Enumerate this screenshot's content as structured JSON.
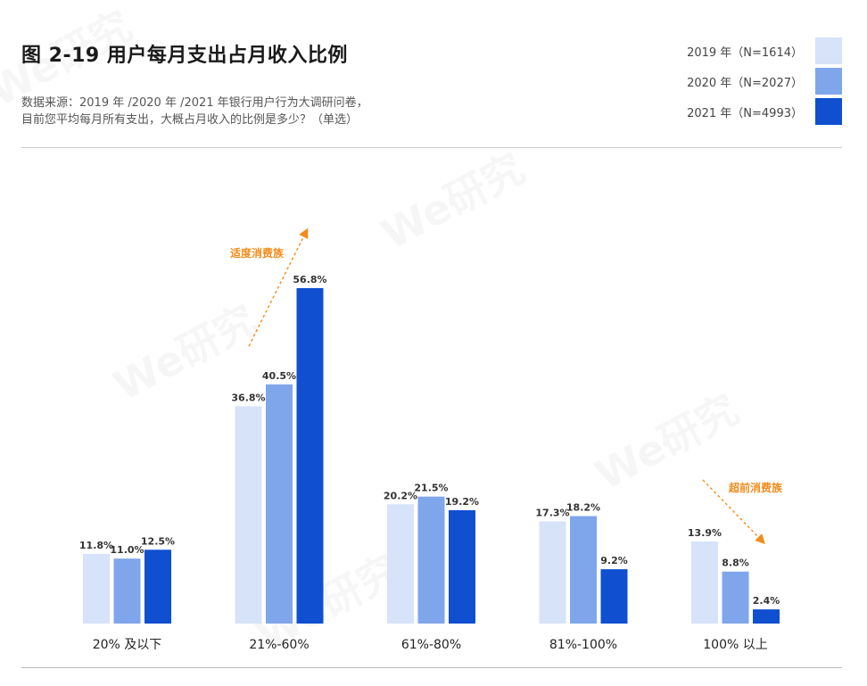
{
  "header": {
    "title": "图 2-19  用户每月支出占月收入比例",
    "source_line1": "数据来源：2019 年 /2020 年 /2021 年银行用户行为大调研问卷，",
    "source_line2": "目前您平均每月所有支出，大概占月收入的比例是多少？（单选）"
  },
  "legend": [
    {
      "label": "2019 年（N=1614）",
      "color": "#d6e3f8"
    },
    {
      "label": "2020 年（N=2027）",
      "color": "#7fa6ea"
    },
    {
      "label": "2021 年（N=4993）",
      "color": "#0f4fd0"
    }
  ],
  "watermark": "We研究",
  "annotations": [
    {
      "text": "适度消费族",
      "color": "#f28c1c"
    },
    {
      "text": "超前消费族",
      "color": "#f28c1c"
    }
  ],
  "chart_data": {
    "type": "bar",
    "categories": [
      "20% 及以下",
      "21%-60%",
      "61%-80%",
      "81%-100%",
      "100% 以上"
    ],
    "series": [
      {
        "name": "2019 年（N=1614）",
        "values": [
          11.8,
          36.8,
          20.2,
          17.3,
          13.9
        ],
        "labels": [
          "11.8%",
          "36.8%",
          "20.2%",
          "17.3%",
          "13.9%"
        ],
        "color": "#d6e3f8"
      },
      {
        "name": "2020 年（N=2027）",
        "values": [
          11.0,
          40.5,
          21.5,
          18.2,
          8.8
        ],
        "labels": [
          "11.0%",
          "40.5%",
          "21.5%",
          "18.2%",
          "8.8%"
        ],
        "color": "#7fa6ea"
      },
      {
        "name": "2021 年（N=4993）",
        "values": [
          12.5,
          56.8,
          19.2,
          9.2,
          2.4
        ],
        "labels": [
          "12.5%",
          "56.8%",
          "19.2%",
          "9.2%",
          "2.4%"
        ],
        "color": "#0f4fd0"
      }
    ],
    "unit": "%",
    "ylim": [
      0,
      60
    ],
    "grid": false,
    "legend_position": "top-right"
  }
}
